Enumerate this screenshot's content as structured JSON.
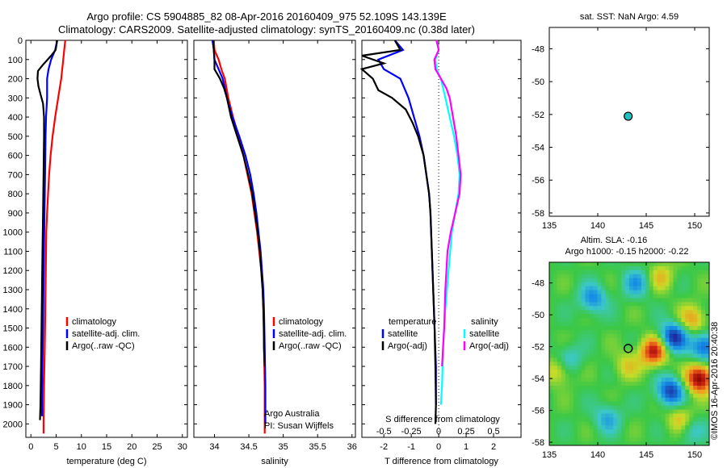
{
  "titles": {
    "line1": "Argo profile: CS 5904885_82 08-Apr-2016 20160409_975 52.109S 143.139E",
    "line2": "Climatology: CARS2009. Satellite-adjusted climatology: synTS_20160409.nc (0.38d later)"
  },
  "colors": {
    "climatology": "#ff0000",
    "satellite": "#0000ff",
    "argo": "#000000",
    "sat_salinity": "#00ffff",
    "argo_salinity_adj": "#ff00ff"
  },
  "chart_data": [
    {
      "id": "temperature",
      "type": "line",
      "xlabel": "temperature (deg C)",
      "ylabel": "",
      "xlim": [
        -1,
        31
      ],
      "ylim": [
        2070,
        0
      ],
      "x_ticks": [
        0,
        5,
        10,
        15,
        20,
        25,
        30
      ],
      "y_ticks": [
        0,
        100,
        200,
        300,
        400,
        500,
        600,
        700,
        800,
        900,
        1000,
        1100,
        1200,
        1300,
        1400,
        1500,
        1600,
        1700,
        1800,
        1900,
        2000
      ],
      "legend": [
        "climatology",
        "satellite-adj. clim.",
        "Argo(..raw -QC)"
      ],
      "series": [
        {
          "name": "climatology",
          "color": "#ff0000",
          "points": [
            [
              6.8,
              0
            ],
            [
              6.6,
              50
            ],
            [
              6.4,
              100
            ],
            [
              6.0,
              200
            ],
            [
              5.4,
              300
            ],
            [
              4.8,
              400
            ],
            [
              4.3,
              500
            ],
            [
              3.9,
              600
            ],
            [
              3.6,
              700
            ],
            [
              3.4,
              800
            ],
            [
              3.2,
              900
            ],
            [
              3.05,
              1000
            ],
            [
              2.95,
              1200
            ],
            [
              2.85,
              1400
            ],
            [
              2.75,
              1600
            ],
            [
              2.6,
              1800
            ],
            [
              2.5,
              2000
            ],
            [
              2.5,
              2050
            ]
          ]
        },
        {
          "name": "satellite-adj. clim.",
          "color": "#0000ff",
          "points": [
            [
              5.2,
              0
            ],
            [
              4.8,
              50
            ],
            [
              4.0,
              100
            ],
            [
              3.5,
              150
            ],
            [
              3.2,
              200
            ],
            [
              3.2,
              300
            ],
            [
              3.0,
              400
            ],
            [
              2.9,
              500
            ],
            [
              2.8,
              700
            ],
            [
              2.7,
              900
            ],
            [
              2.6,
              1100
            ],
            [
              2.5,
              1300
            ],
            [
              2.4,
              1500
            ],
            [
              2.3,
              1700
            ],
            [
              2.2,
              1900
            ],
            [
              2.2,
              1960
            ]
          ]
        },
        {
          "name": "Argo(..raw -QC)",
          "color": "#000000",
          "points": [
            [
              5.2,
              0
            ],
            [
              4.9,
              50
            ],
            [
              4.0,
              80
            ],
            [
              2.3,
              130
            ],
            [
              1.4,
              160
            ],
            [
              1.3,
              200
            ],
            [
              1.5,
              240
            ],
            [
              1.9,
              280
            ],
            [
              2.4,
              330
            ],
            [
              2.6,
              400
            ],
            [
              2.6,
              500
            ],
            [
              2.5,
              700
            ],
            [
              2.4,
              900
            ],
            [
              2.3,
              1100
            ],
            [
              2.2,
              1300
            ],
            [
              2.1,
              1500
            ],
            [
              2.0,
              1700
            ],
            [
              1.9,
              1900
            ],
            [
              1.8,
              1980
            ]
          ]
        }
      ]
    },
    {
      "id": "salinity",
      "type": "line",
      "xlabel": "salinity",
      "ylabel": "",
      "xlim": [
        33.7,
        36.05
      ],
      "ylim": [
        2070,
        0
      ],
      "x_ticks": [
        34,
        34.5,
        35,
        35.5,
        36
      ],
      "legend": [
        "climatology",
        "satellite-adj. clim.",
        "Argo(..raw -QC)"
      ],
      "annotations": [
        "Argo Australia",
        "PI: Susan Wijffels"
      ],
      "series": [
        {
          "name": "climatology",
          "color": "#ff0000",
          "points": [
            [
              33.99,
              0
            ],
            [
              34.0,
              50
            ],
            [
              34.06,
              100
            ],
            [
              34.1,
              150
            ],
            [
              34.15,
              200
            ],
            [
              34.2,
              300
            ],
            [
              34.27,
              400
            ],
            [
              34.35,
              500
            ],
            [
              34.42,
              600
            ],
            [
              34.48,
              700
            ],
            [
              34.54,
              800
            ],
            [
              34.58,
              900
            ],
            [
              34.62,
              1000
            ],
            [
              34.65,
              1100
            ],
            [
              34.68,
              1200
            ],
            [
              34.7,
              1300
            ],
            [
              34.71,
              1400
            ],
            [
              34.72,
              1600
            ],
            [
              34.73,
              1800
            ],
            [
              34.73,
              2000
            ],
            [
              34.73,
              2050
            ]
          ]
        },
        {
          "name": "satellite-adj. clim.",
          "color": "#0000ff",
          "points": [
            [
              33.97,
              0
            ],
            [
              33.99,
              50
            ],
            [
              34.0,
              100
            ],
            [
              34.06,
              150
            ],
            [
              34.12,
              200
            ],
            [
              34.18,
              300
            ],
            [
              34.26,
              400
            ],
            [
              34.36,
              500
            ],
            [
              34.45,
              600
            ],
            [
              34.52,
              700
            ],
            [
              34.57,
              800
            ],
            [
              34.61,
              900
            ],
            [
              34.64,
              1000
            ],
            [
              34.67,
              1100
            ],
            [
              34.69,
              1200
            ],
            [
              34.71,
              1300
            ],
            [
              34.72,
              1400
            ],
            [
              34.73,
              1600
            ],
            [
              34.74,
              1800
            ],
            [
              34.74,
              2000
            ]
          ]
        },
        {
          "name": "Argo(..raw -QC)",
          "color": "#000000",
          "points": [
            [
              33.98,
              0
            ],
            [
              33.99,
              50
            ],
            [
              34.0,
              100
            ],
            [
              34.0,
              150
            ],
            [
              34.08,
              200
            ],
            [
              34.14,
              250
            ],
            [
              34.18,
              300
            ],
            [
              34.24,
              400
            ],
            [
              34.33,
              500
            ],
            [
              34.42,
              600
            ],
            [
              34.49,
              700
            ],
            [
              34.55,
              800
            ],
            [
              34.59,
              900
            ],
            [
              34.63,
              1000
            ],
            [
              34.66,
              1100
            ],
            [
              34.68,
              1200
            ],
            [
              34.7,
              1300
            ],
            [
              34.71,
              1400
            ],
            [
              34.72,
              1500
            ],
            [
              34.72,
              1600
            ],
            [
              34.73,
              1700
            ]
          ]
        }
      ]
    },
    {
      "id": "difference",
      "type": "line",
      "xlabel": "T difference from climatology",
      "xlabel_top": "S difference from climatology",
      "xlim": [
        -2.8,
        3.0
      ],
      "ylim": [
        2070,
        0
      ],
      "x_ticks": [
        -2,
        -1,
        0,
        1,
        2
      ],
      "s_ticks": [
        "-0.5",
        "-0.25",
        "0",
        "0.25",
        "0.5"
      ],
      "legend_left_title": "temperature",
      "legend_left": [
        "satellite",
        "Argo(-adj)"
      ],
      "legend_right_title": "salinity",
      "legend_right": [
        "satellite",
        "Argo(-adj)"
      ],
      "series": [
        {
          "name": "temperature satellite",
          "color": "#0000ff",
          "points": [
            [
              -1.6,
              0
            ],
            [
              -1.3,
              50
            ],
            [
              -2.2,
              100
            ],
            [
              -2.0,
              150
            ],
            [
              -1.4,
              200
            ],
            [
              -1.1,
              300
            ],
            [
              -0.9,
              400
            ],
            [
              -0.7,
              500
            ],
            [
              -0.55,
              600
            ],
            [
              -0.45,
              700
            ],
            [
              -0.35,
              800
            ],
            [
              -0.3,
              900
            ],
            [
              -0.25,
              1100
            ],
            [
              -0.2,
              1300
            ],
            [
              -0.15,
              1500
            ],
            [
              -0.1,
              1700
            ],
            [
              -0.1,
              1900
            ]
          ]
        },
        {
          "name": "temperature Argo(-adj)",
          "color": "#000000",
          "points": [
            [
              -1.6,
              0
            ],
            [
              -1.4,
              50
            ],
            [
              -2.8,
              80
            ],
            [
              -2.0,
              120
            ],
            [
              -2.8,
              150
            ],
            [
              -2.4,
              200
            ],
            [
              -2.2,
              260
            ],
            [
              -1.7,
              300
            ],
            [
              -1.2,
              360
            ],
            [
              -0.95,
              430
            ],
            [
              -0.75,
              500
            ],
            [
              -0.55,
              600
            ],
            [
              -0.45,
              700
            ],
            [
              -0.35,
              800
            ],
            [
              -0.3,
              900
            ],
            [
              -0.25,
              1100
            ],
            [
              -0.2,
              1300
            ],
            [
              -0.15,
              1500
            ],
            [
              -0.12,
              1700
            ],
            [
              -0.1,
              1900
            ],
            [
              -0.12,
              2000
            ]
          ]
        },
        {
          "name": "salinity satellite",
          "color": "#00ffff",
          "points": [
            [
              -0.02,
              0
            ],
            [
              0.0,
              50
            ],
            [
              -0.03,
              100
            ],
            [
              -0.02,
              150
            ],
            [
              0.02,
              200
            ],
            [
              0.06,
              300
            ],
            [
              0.1,
              400
            ],
            [
              0.14,
              500
            ],
            [
              0.17,
              600
            ],
            [
              0.19,
              700
            ],
            [
              0.18,
              800
            ],
            [
              0.15,
              900
            ],
            [
              0.12,
              1000
            ],
            [
              0.09,
              1200
            ],
            [
              0.06,
              1400
            ],
            [
              0.04,
              1600
            ],
            [
              0.03,
              1800
            ],
            [
              0.02,
              1900
            ]
          ]
        },
        {
          "name": "salinity Argo(-adj)",
          "color": "#ff00ff",
          "points": [
            [
              -0.02,
              0
            ],
            [
              0.0,
              50
            ],
            [
              -0.04,
              100
            ],
            [
              -0.03,
              150
            ],
            [
              0.02,
              200
            ],
            [
              0.07,
              250
            ],
            [
              0.1,
              300
            ],
            [
              0.13,
              400
            ],
            [
              0.16,
              500
            ],
            [
              0.18,
              600
            ],
            [
              0.2,
              700
            ],
            [
              0.19,
              800
            ],
            [
              0.15,
              900
            ],
            [
              0.11,
              1000
            ],
            [
              0.08,
              1100
            ],
            [
              0.06,
              1300
            ],
            [
              0.05,
              1500
            ],
            [
              0.04,
              1600
            ],
            [
              0.03,
              1700
            ]
          ]
        }
      ]
    },
    {
      "id": "sst_map",
      "type": "scatter",
      "title": "sat. SST: NaN Argo: 4.59",
      "xlim": [
        135,
        151.5
      ],
      "ylim": [
        -58.2,
        -46.7
      ],
      "x_ticks": [
        135,
        140,
        145,
        150
      ],
      "y_ticks": [
        -48,
        -50,
        -52,
        -54,
        -56,
        -58
      ],
      "points": [
        [
          143.139,
          -52.109
        ]
      ],
      "marker_color": "#20c0c0"
    },
    {
      "id": "sla_map",
      "type": "heatmap",
      "title": "Altim. SLA: -0.16",
      "subtitle": "Argo h1000: -0.15 h2000: -0.22",
      "xlim": [
        135,
        151.5
      ],
      "ylim": [
        -58.2,
        -46.7
      ],
      "x_ticks": [
        135,
        140,
        145,
        150
      ],
      "y_ticks": [
        -48,
        -50,
        -52,
        -54,
        -56,
        -58
      ],
      "points": [
        [
          143.139,
          -52.109
        ]
      ],
      "blobs": [
        {
          "lon": 147.8,
          "lat": -51.4,
          "v": -1.0
        },
        {
          "lon": 147.5,
          "lat": -54.8,
          "v": -0.9
        },
        {
          "lon": 151.0,
          "lat": -52.0,
          "v": -0.8
        },
        {
          "lon": 139.5,
          "lat": -49.0,
          "v": -0.6
        },
        {
          "lon": 144.0,
          "lat": -48.0,
          "v": -0.5
        },
        {
          "lon": 141.0,
          "lat": -56.5,
          "v": -0.45
        },
        {
          "lon": 137.0,
          "lat": -52.8,
          "v": -0.4
        },
        {
          "lon": 149.5,
          "lat": -57.2,
          "v": -0.4
        },
        {
          "lon": 150.5,
          "lat": -54.0,
          "v": 1.2
        },
        {
          "lon": 145.8,
          "lat": -52.3,
          "v": 1.0
        },
        {
          "lon": 148.6,
          "lat": -56.6,
          "v": 0.5
        },
        {
          "lon": 149.8,
          "lat": -50.3,
          "v": 0.55
        },
        {
          "lon": 136.0,
          "lat": -53.5,
          "v": 0.45
        },
        {
          "lon": 143.0,
          "lat": -53.2,
          "v": 0.35
        },
        {
          "lon": 146.5,
          "lat": -47.6,
          "v": 0.4
        }
      ]
    }
  ],
  "watermark": "©IMOS 16-Apr-2016 20:40:38"
}
